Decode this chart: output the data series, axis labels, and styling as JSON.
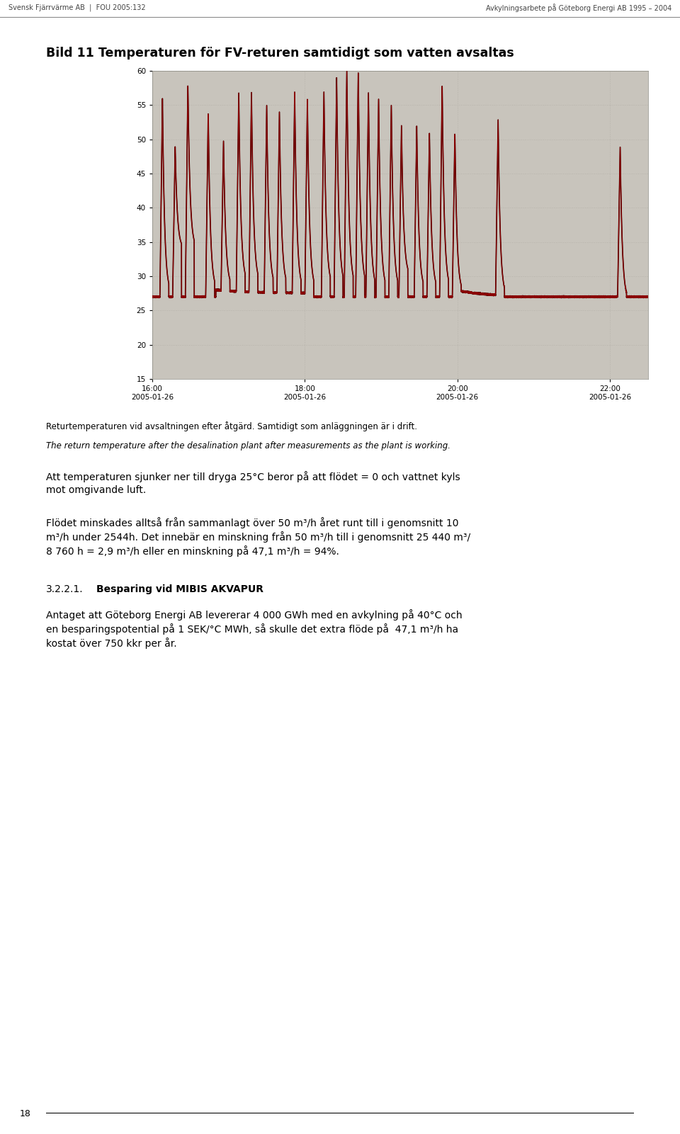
{
  "page_header_left": "Svensk Fjärrvärme AB  |  FOU 2005:132",
  "page_header_right": "Avkylningsarbete på Göteborg Energi AB 1995 – 2004",
  "chart_title": "Bild 11 Temperaturen för FV-returen samtidigt som vatten avsaltas",
  "y_min": 15,
  "y_max": 60,
  "y_ticks": [
    15,
    20,
    25,
    30,
    35,
    40,
    45,
    50,
    55,
    60
  ],
  "caption_normal": "Returtemperaturen vid avsaltningen efter åtgärd. Samtidigt som anläggningen är i drift.",
  "caption_italic": "The return temperature after the desalination plant after measurements as the plant is working.",
  "para1_line1": "Att temperaturen sjunker ner till dryga 25°C beror på att flödet = 0 och vattnet kyls",
  "para1_line2": "mot omgivande luft.",
  "para2_line1": "Flödet minskades alltså från sammanlagt över 50 m³/h året runt till i genomsnitt 10",
  "para2_line2": "m³/h under 2544h. Det innebär en minskning från 50 m³/h till i genomsnitt 25 440 m³/",
  "para2_line3": "8 760 h = 2,9 m³/h eller en minskning på 47,1 m³/h = 94%.",
  "section_num": "3.2.2.1.",
  "section_title": "Besparing vid MIBIS AKVAPUR",
  "para3_line1": "Antaget att Göteborg Energi AB levererar 4 000 GWh med en avkylning på 40°C och",
  "para3_line2": "en besparingspotential på 1 SEK/°C MWh, så skulle det extra flöde på  47,1 m³/h ha",
  "para3_line3": "kostat över 750 kkr per år.",
  "page_number": "18",
  "chart_bg": "#d4d0c8",
  "line_color": "#8b0000",
  "grid_color": "#b8b4ac"
}
